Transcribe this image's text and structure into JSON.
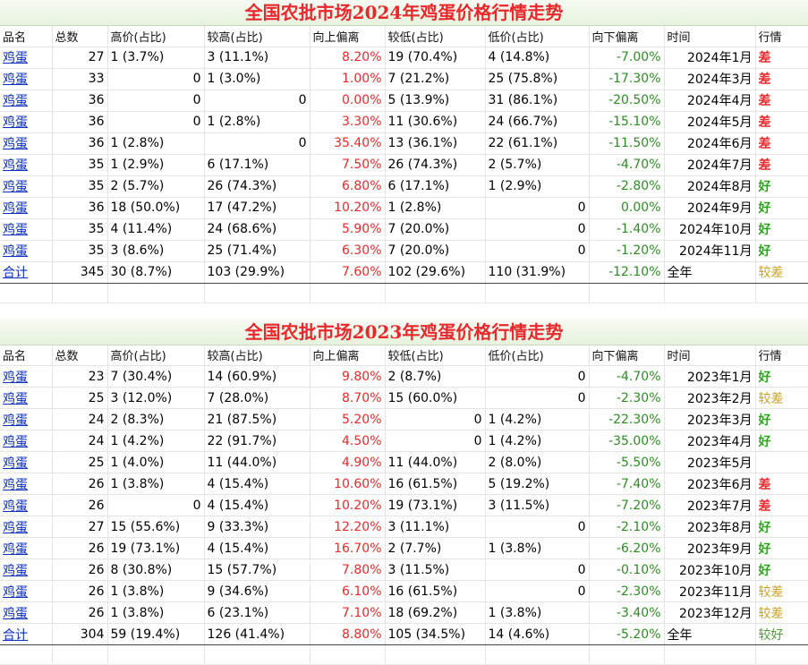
{
  "headers": [
    "品名",
    "总数",
    "高价(占比)",
    "较高(占比)",
    "向上偏离",
    "较低(占比)",
    "低价(占比)",
    "向下偏离",
    "时间",
    "行情"
  ],
  "tables": [
    {
      "title": "全国农批市场2024年鸡蛋价格行情走势",
      "rows": [
        {
          "name": "鸡蛋",
          "total": "27",
          "high": "1 (3.7%)",
          "higher": "3 (11.1%)",
          "up": "8.20%",
          "lower": "19 (70.4%)",
          "low": "4 (14.8%)",
          "down": "-7.00%",
          "time": "2024年1月",
          "trend": "差",
          "trend_type": "bad"
        },
        {
          "name": "鸡蛋",
          "total": "33",
          "high": "0",
          "higher": "1 (3.0%)",
          "up": "1.00%",
          "lower": "7 (21.2%)",
          "low": "25 (75.8%)",
          "down": "-17.30%",
          "time": "2024年3月",
          "trend": "差",
          "trend_type": "bad"
        },
        {
          "name": "鸡蛋",
          "total": "36",
          "high": "0",
          "higher": "0",
          "up": "0.00%",
          "lower": "5 (13.9%)",
          "low": "31 (86.1%)",
          "down": "-20.50%",
          "time": "2024年4月",
          "trend": "差",
          "trend_type": "bad"
        },
        {
          "name": "鸡蛋",
          "total": "36",
          "high": "0",
          "higher": "1 (2.8%)",
          "up": "3.30%",
          "lower": "11 (30.6%)",
          "low": "24 (66.7%)",
          "down": "-15.10%",
          "time": "2024年5月",
          "trend": "差",
          "trend_type": "bad"
        },
        {
          "name": "鸡蛋",
          "total": "36",
          "high": "1 (2.8%)",
          "higher": "0",
          "up": "35.40%",
          "lower": "13 (36.1%)",
          "low": "22 (61.1%)",
          "down": "-11.50%",
          "time": "2024年6月",
          "trend": "差",
          "trend_type": "bad"
        },
        {
          "name": "鸡蛋",
          "total": "35",
          "high": "1 (2.9%)",
          "higher": "6 (17.1%)",
          "up": "7.50%",
          "lower": "26 (74.3%)",
          "low": "2 (5.7%)",
          "down": "-4.70%",
          "time": "2024年7月",
          "trend": "差",
          "trend_type": "bad"
        },
        {
          "name": "鸡蛋",
          "total": "35",
          "high": "2 (5.7%)",
          "higher": "26 (74.3%)",
          "up": "6.80%",
          "lower": "6 (17.1%)",
          "low": "1 (2.9%)",
          "down": "-2.80%",
          "time": "2024年8月",
          "trend": "好",
          "trend_type": "good"
        },
        {
          "name": "鸡蛋",
          "total": "36",
          "high": "18 (50.0%)",
          "higher": "17 (47.2%)",
          "up": "10.20%",
          "lower": "1 (2.8%)",
          "low": "0",
          "down": "0.00%",
          "time": "2024年9月",
          "trend": "好",
          "trend_type": "good"
        },
        {
          "name": "鸡蛋",
          "total": "35",
          "high": "4 (11.4%)",
          "higher": "24 (68.6%)",
          "up": "5.90%",
          "lower": "7 (20.0%)",
          "low": "0",
          "down": "-1.40%",
          "time": "2024年10月",
          "trend": "好",
          "trend_type": "good"
        },
        {
          "name": "鸡蛋",
          "total": "35",
          "high": "3 (8.6%)",
          "higher": "25 (71.4%)",
          "up": "6.30%",
          "lower": "7 (20.0%)",
          "low": "0",
          "down": "-1.20%",
          "time": "2024年11月",
          "trend": "好",
          "trend_type": "good"
        }
      ],
      "summary": {
        "name": "合计",
        "total": "345",
        "high": "30 (8.7%)",
        "higher": "103 (29.9%)",
        "up": "7.60%",
        "lower": "102 (29.6%)",
        "low": "110 (31.9%)",
        "down": "-12.10%",
        "time": "全年",
        "trend": "较差",
        "trend_type": "mid"
      }
    },
    {
      "title": "全国农批市场2023年鸡蛋价格行情走势",
      "rows": [
        {
          "name": "鸡蛋",
          "total": "23",
          "high": "7 (30.4%)",
          "higher": "14 (60.9%)",
          "up": "9.80%",
          "lower": "2 (8.7%)",
          "low": "0",
          "down": "-4.70%",
          "time": "2023年1月",
          "trend": "好",
          "trend_type": "good"
        },
        {
          "name": "鸡蛋",
          "total": "25",
          "high": "3 (12.0%)",
          "higher": "7 (28.0%)",
          "up": "8.70%",
          "lower": "15 (60.0%)",
          "low": "0",
          "down": "-2.30%",
          "time": "2023年2月",
          "trend": "较差",
          "trend_type": "mid"
        },
        {
          "name": "鸡蛋",
          "total": "24",
          "high": "2 (8.3%)",
          "higher": "21 (87.5%)",
          "up": "5.20%",
          "lower": "0",
          "low": "1 (4.2%)",
          "down": "-22.30%",
          "time": "2023年3月",
          "trend": "好",
          "trend_type": "good"
        },
        {
          "name": "鸡蛋",
          "total": "24",
          "high": "1 (4.2%)",
          "higher": "22 (91.7%)",
          "up": "4.50%",
          "lower": "0",
          "low": "1 (4.2%)",
          "down": "-35.00%",
          "time": "2023年4月",
          "trend": "好",
          "trend_type": "good"
        },
        {
          "name": "鸡蛋",
          "total": "25",
          "high": "1 (4.0%)",
          "higher": "11 (44.0%)",
          "up": "4.90%",
          "lower": "11 (44.0%)",
          "low": "2 (8.0%)",
          "down": "-5.50%",
          "time": "2023年5月",
          "trend": "",
          "trend_type": "none"
        },
        {
          "name": "鸡蛋",
          "total": "26",
          "high": "1 (3.8%)",
          "higher": "4 (15.4%)",
          "up": "10.60%",
          "lower": "16 (61.5%)",
          "low": "5 (19.2%)",
          "down": "-7.40%",
          "time": "2023年6月",
          "trend": "差",
          "trend_type": "bad"
        },
        {
          "name": "鸡蛋",
          "total": "26",
          "high": "0",
          "higher": "4 (15.4%)",
          "up": "10.20%",
          "lower": "19 (73.1%)",
          "low": "3 (11.5%)",
          "down": "-7.20%",
          "time": "2023年7月",
          "trend": "差",
          "trend_type": "bad"
        },
        {
          "name": "鸡蛋",
          "total": "27",
          "high": "15 (55.6%)",
          "higher": "9 (33.3%)",
          "up": "12.20%",
          "lower": "3 (11.1%)",
          "low": "0",
          "down": "-2.10%",
          "time": "2023年8月",
          "trend": "好",
          "trend_type": "good"
        },
        {
          "name": "鸡蛋",
          "total": "26",
          "high": "19 (73.1%)",
          "higher": "4 (15.4%)",
          "up": "16.70%",
          "lower": "2 (7.7%)",
          "low": "1 (3.8%)",
          "down": "-6.20%",
          "time": "2023年9月",
          "trend": "好",
          "trend_type": "good"
        },
        {
          "name": "鸡蛋",
          "total": "26",
          "high": "8 (30.8%)",
          "higher": "15 (57.7%)",
          "up": "7.80%",
          "lower": "3 (11.5%)",
          "low": "0",
          "down": "-0.10%",
          "time": "2023年10月",
          "trend": "好",
          "trend_type": "good"
        },
        {
          "name": "鸡蛋",
          "total": "26",
          "high": "1 (3.8%)",
          "higher": "9 (34.6%)",
          "up": "6.10%",
          "lower": "16 (61.5%)",
          "low": "0",
          "down": "-2.30%",
          "time": "2023年11月",
          "trend": "较差",
          "trend_type": "mid"
        },
        {
          "name": "鸡蛋",
          "total": "26",
          "high": "1 (3.8%)",
          "higher": "6 (23.1%)",
          "up": "7.10%",
          "lower": "18 (69.2%)",
          "low": "1 (3.8%)",
          "down": "-3.40%",
          "time": "2023年12月",
          "trend": "较差",
          "trend_type": "mid"
        }
      ],
      "summary": {
        "name": "合计",
        "total": "304",
        "high": "59 (19.4%)",
        "higher": "126 (41.4%)",
        "up": "8.80%",
        "lower": "105 (34.5%)",
        "low": "14 (4.6%)",
        "down": "-5.20%",
        "time": "全年",
        "trend": "较好",
        "trend_type": "good-total"
      }
    }
  ],
  "colors": {
    "title": "#e8282c",
    "up": "#e8282c",
    "down": "#2e8b24",
    "bad": "#e8282c",
    "good": "#2ea31c",
    "mid": "#c9a227",
    "link": "#0a2ebf"
  }
}
